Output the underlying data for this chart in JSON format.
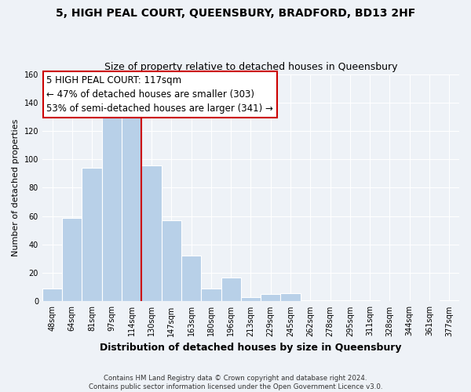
{
  "title": "5, HIGH PEAL COURT, QUEENSBURY, BRADFORD, BD13 2HF",
  "subtitle": "Size of property relative to detached houses in Queensbury",
  "xlabel": "Distribution of detached houses by size in Queensbury",
  "ylabel": "Number of detached properties",
  "bin_labels": [
    "48sqm",
    "64sqm",
    "81sqm",
    "97sqm",
    "114sqm",
    "130sqm",
    "147sqm",
    "163sqm",
    "180sqm",
    "196sqm",
    "213sqm",
    "229sqm",
    "245sqm",
    "262sqm",
    "278sqm",
    "295sqm",
    "311sqm",
    "328sqm",
    "344sqm",
    "361sqm",
    "377sqm"
  ],
  "bar_values": [
    9,
    59,
    94,
    130,
    131,
    96,
    57,
    32,
    9,
    17,
    3,
    5,
    6,
    1,
    1,
    1,
    1,
    0,
    0,
    0,
    1
  ],
  "red_line_index": 4,
  "property_sqm": 117,
  "annotation_title": "5 HIGH PEAL COURT: 117sqm",
  "annotation_line1": "← 47% of detached houses are smaller (303)",
  "annotation_line2": "53% of semi-detached houses are larger (341) →",
  "footer_line1": "Contains HM Land Registry data © Crown copyright and database right 2024.",
  "footer_line2": "Contains public sector information licensed under the Open Government Licence v3.0.",
  "ylim": [
    0,
    160
  ],
  "background_color": "#eef2f7",
  "bar_color": "#b8d0e8",
  "bar_edge_color": "#ffffff",
  "grid_color": "#ffffff",
  "ann_box_color": "#ffffff",
  "ann_border_color": "#cc0000",
  "red_line_color": "#cc0000"
}
